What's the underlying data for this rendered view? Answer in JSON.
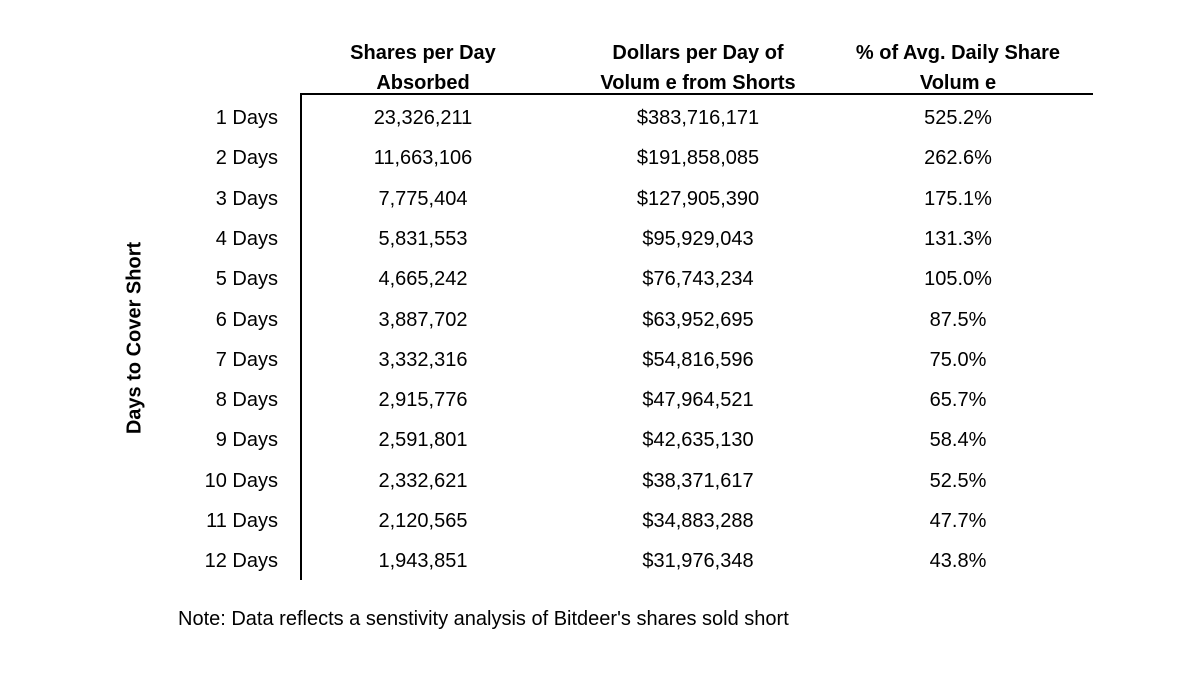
{
  "chart_data": {
    "type": "table",
    "columns": [
      [
        "Shares per Day",
        "Absorbed"
      ],
      [
        "Dollars per Day of",
        "Volum e from Shorts"
      ],
      [
        "% of Avg. Daily Share",
        "Volum e"
      ]
    ],
    "row_axis_label": "Days to Cover Short",
    "rows": [
      {
        "label": "1 Days",
        "shares": "23,326,211",
        "dollars": "$383,716,171",
        "pct": "525.2%"
      },
      {
        "label": "2 Days",
        "shares": "11,663,106",
        "dollars": "$191,858,085",
        "pct": "262.6%"
      },
      {
        "label": "3 Days",
        "shares": "7,775,404",
        "dollars": "$127,905,390",
        "pct": "175.1%"
      },
      {
        "label": "4 Days",
        "shares": "5,831,553",
        "dollars": "$95,929,043",
        "pct": "131.3%"
      },
      {
        "label": "5 Days",
        "shares": "4,665,242",
        "dollars": "$76,743,234",
        "pct": "105.0%"
      },
      {
        "label": "6 Days",
        "shares": "3,887,702",
        "dollars": "$63,952,695",
        "pct": "87.5%"
      },
      {
        "label": "7 Days",
        "shares": "3,332,316",
        "dollars": "$54,816,596",
        "pct": "75.0%"
      },
      {
        "label": "8 Days",
        "shares": "2,915,776",
        "dollars": "$47,964,521",
        "pct": "65.7%"
      },
      {
        "label": "9 Days",
        "shares": "2,591,801",
        "dollars": "$42,635,130",
        "pct": "58.4%"
      },
      {
        "label": "10 Days",
        "shares": "2,332,621",
        "dollars": "$38,371,617",
        "pct": "52.5%"
      },
      {
        "label": "11 Days",
        "shares": "2,120,565",
        "dollars": "$34,883,288",
        "pct": "47.7%"
      },
      {
        "label": "12 Days",
        "shares": "1,943,851",
        "dollars": "$31,976,348",
        "pct": "43.8%"
      }
    ],
    "note": "Note: Data reflects a senstivity analysis of Bitdeer's shares sold short"
  }
}
